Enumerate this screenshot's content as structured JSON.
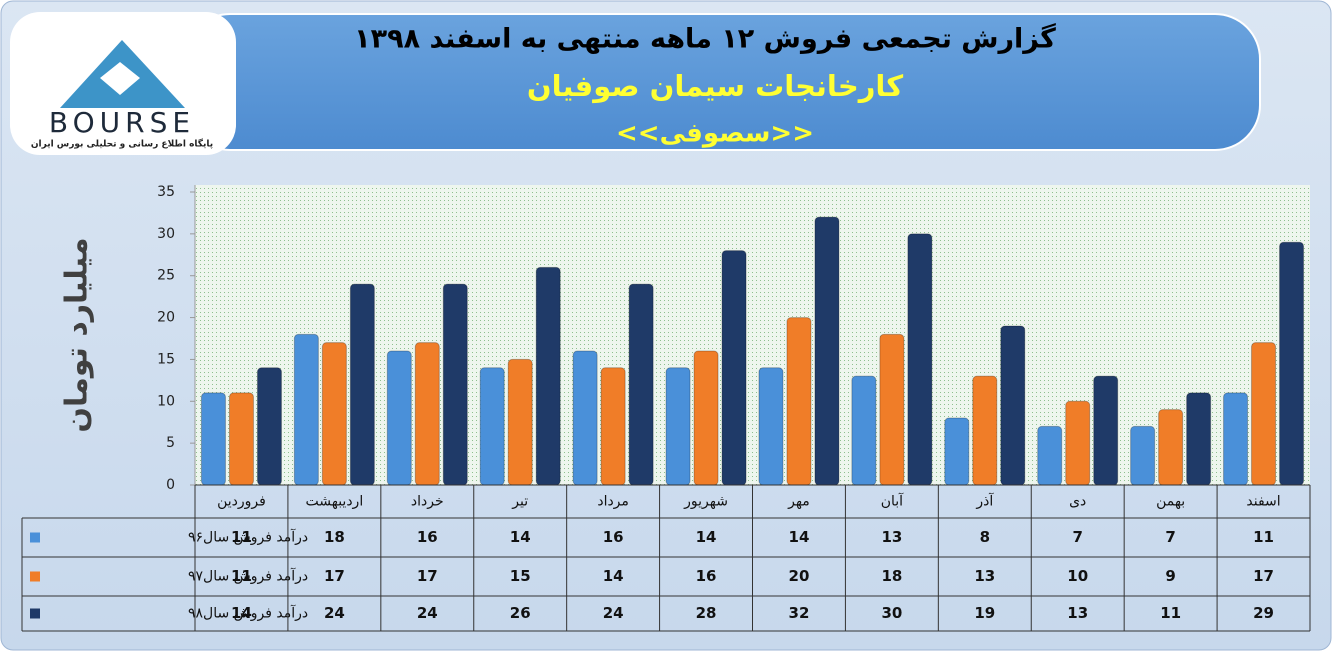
{
  "logo": {
    "name": "BOURSE",
    "tagline": "پایگاه اطلاع رسانی و تحلیلی بورس ایران"
  },
  "chart_data": {
    "type": "bar",
    "title": "گزارش تجمعی فروش  ۱۲ ماهه منتهی به اسفند ۱۳۹۸",
    "subtitle": "کارخانجات سیمان صوفیان",
    "symbol": "<<سصوفی>>",
    "y_label": "میلیارد تومان",
    "categories": [
      "فروردین",
      "اردیبهشت",
      "خرداد",
      "تیر",
      "مرداد",
      "شهریور",
      "مهر",
      "آبان",
      "آذر",
      "دی",
      "بهمن",
      "اسفند"
    ],
    "series": [
      {
        "name": "درآمد فروش سال۹۶",
        "color": "#4a90d9",
        "values": [
          11,
          18,
          16,
          14,
          16,
          14,
          14,
          13,
          8,
          7,
          7,
          11
        ]
      },
      {
        "name": "درآمد فروش سال۹۷",
        "color": "#f07d28",
        "values": [
          11,
          17,
          17,
          15,
          14,
          16,
          20,
          18,
          13,
          10,
          9,
          17
        ]
      },
      {
        "name": "درآمد فروش سال۹۸",
        "color": "#1f3a68",
        "values": [
          14,
          24,
          24,
          26,
          24,
          28,
          32,
          30,
          19,
          13,
          11,
          29
        ]
      }
    ],
    "ylim": [
      0,
      35
    ],
    "yticks": [
      0,
      5,
      10,
      15,
      20,
      25,
      30,
      35
    ],
    "grid": false
  }
}
